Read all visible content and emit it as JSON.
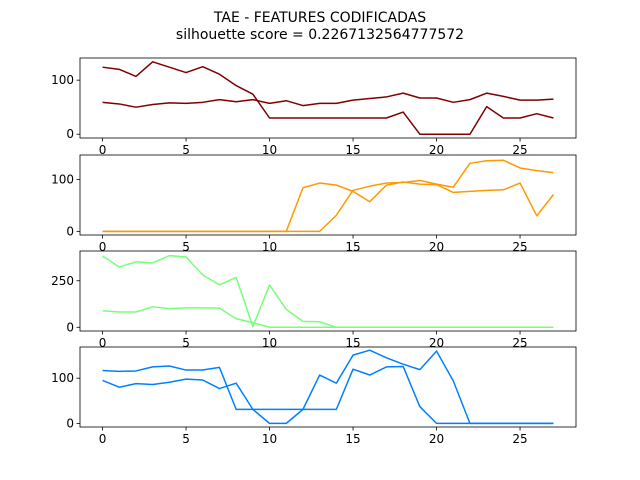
{
  "figure": {
    "title": "TAE - FEATURES CODIFICADAS",
    "subtitle": "silhouette score = 0.2267132564777572"
  },
  "chart_data": [
    {
      "type": "line",
      "xlim": [
        -1.35,
        28.35
      ],
      "ylim": [
        -7,
        141
      ],
      "xticks": [
        0,
        5,
        10,
        15,
        20,
        25
      ],
      "yticks": [
        0,
        100
      ],
      "grid": false,
      "series": [
        {
          "color": "#800000",
          "x": [
            0,
            1,
            2,
            3,
            4,
            5,
            6,
            7,
            8,
            9,
            10,
            11,
            12,
            13,
            14,
            15,
            16,
            17,
            18,
            19,
            20,
            21,
            22,
            23,
            24,
            25,
            26,
            27
          ],
          "values": [
            124,
            120,
            107,
            134,
            124,
            114,
            125,
            111,
            90,
            74,
            30,
            30,
            30,
            30,
            30,
            30,
            30,
            30,
            41,
            0,
            0,
            0,
            0,
            51,
            30,
            30,
            38,
            30
          ]
        },
        {
          "color": "#800000",
          "x": [
            0,
            1,
            2,
            3,
            4,
            5,
            6,
            7,
            8,
            9,
            10,
            11,
            12,
            13,
            14,
            15,
            16,
            17,
            18,
            19,
            20,
            21,
            22,
            23,
            24,
            25,
            26,
            27
          ],
          "values": [
            59,
            56,
            50,
            55,
            58,
            57,
            59,
            64,
            60,
            64,
            57,
            62,
            53,
            57,
            57,
            63,
            66,
            69,
            76,
            67,
            67,
            59,
            64,
            76,
            70,
            63,
            63,
            65
          ]
        }
      ]
    },
    {
      "type": "line",
      "xlim": [
        -1.35,
        28.35
      ],
      "ylim": [
        -7,
        147
      ],
      "xticks": [
        0,
        5,
        10,
        15,
        20,
        25
      ],
      "yticks": [
        0,
        100
      ],
      "grid": false,
      "series": [
        {
          "color": "#ff9900",
          "x": [
            0,
            1,
            2,
            3,
            4,
            5,
            6,
            7,
            8,
            9,
            10,
            11,
            12,
            13,
            14,
            15,
            16,
            17,
            18,
            19,
            20,
            21,
            22,
            23,
            24,
            25,
            26,
            27
          ],
          "values": [
            0,
            0,
            0,
            0,
            0,
            0,
            0,
            0,
            0,
            0,
            0,
            0,
            84,
            93,
            89,
            77,
            57,
            89,
            95,
            91,
            90,
            75,
            77,
            79,
            80,
            93,
            30,
            71
          ]
        },
        {
          "color": "#ff9900",
          "x": [
            0,
            1,
            2,
            3,
            4,
            5,
            6,
            7,
            8,
            9,
            10,
            11,
            12,
            13,
            14,
            15,
            16,
            17,
            18,
            19,
            20,
            21,
            22,
            23,
            24,
            25,
            26,
            27
          ],
          "values": [
            0,
            0,
            0,
            0,
            0,
            0,
            0,
            0,
            0,
            0,
            0,
            0,
            0,
            0,
            31,
            79,
            87,
            93,
            94,
            98,
            91,
            85,
            131,
            136,
            137,
            122,
            117,
            113
          ]
        }
      ]
    },
    {
      "type": "line",
      "xlim": [
        -1.35,
        28.35
      ],
      "ylim": [
        -20,
        410
      ],
      "xticks": [
        0,
        5,
        10,
        15,
        20,
        25
      ],
      "yticks": [
        0,
        250
      ],
      "grid": false,
      "series": [
        {
          "color": "#77ff77",
          "x": [
            0,
            1,
            2,
            3,
            4,
            5,
            6,
            7,
            8,
            9,
            10,
            11,
            12,
            13,
            14,
            15,
            16,
            17,
            18,
            19,
            20,
            21,
            22,
            23,
            24,
            25,
            26,
            27
          ],
          "values": [
            383,
            324,
            352,
            346,
            385,
            378,
            281,
            228,
            268,
            4,
            227,
            96,
            32,
            30,
            0,
            0,
            0,
            0,
            0,
            0,
            0,
            0,
            0,
            0,
            0,
            0,
            0,
            0
          ]
        },
        {
          "color": "#77ff77",
          "x": [
            0,
            1,
            2,
            3,
            4,
            5,
            6,
            7,
            8,
            9,
            10,
            11,
            12,
            13,
            14,
            15,
            16,
            17,
            18,
            19,
            20,
            21,
            22,
            23,
            24,
            25,
            26,
            27
          ],
          "values": [
            89,
            82,
            82,
            110,
            100,
            104,
            104,
            103,
            46,
            25,
            0,
            0,
            0,
            0,
            0,
            0,
            0,
            0,
            0,
            0,
            0,
            0,
            0,
            0,
            0,
            0,
            0,
            0
          ]
        }
      ]
    },
    {
      "type": "line",
      "xlim": [
        -1.35,
        28.35
      ],
      "ylim": [
        -8,
        169
      ],
      "xticks": [
        0,
        5,
        10,
        15,
        20,
        25
      ],
      "yticks": [
        0,
        100
      ],
      "grid": false,
      "series": [
        {
          "color": "#0080ff",
          "x": [
            0,
            1,
            2,
            3,
            4,
            5,
            6,
            7,
            8,
            9,
            10,
            11,
            12,
            13,
            14,
            15,
            16,
            17,
            18,
            19,
            20,
            21,
            22,
            23,
            24,
            25,
            26,
            27
          ],
          "values": [
            95,
            80,
            88,
            86,
            91,
            98,
            96,
            77,
            89,
            31,
            0,
            0,
            31,
            107,
            89,
            151,
            162,
            145,
            131,
            119,
            160,
            94,
            0,
            0,
            0,
            0,
            0,
            0
          ]
        },
        {
          "color": "#0080ff",
          "x": [
            0,
            1,
            2,
            3,
            4,
            5,
            6,
            7,
            8,
            9,
            10,
            11,
            12,
            13,
            14,
            15,
            16,
            17,
            18,
            19,
            20,
            21,
            22,
            23,
            24,
            25,
            26,
            27
          ],
          "values": [
            117,
            115,
            116,
            125,
            127,
            118,
            118,
            124,
            31,
            31,
            31,
            31,
            31,
            31,
            31,
            120,
            107,
            125,
            126,
            37,
            0,
            0,
            0,
            0,
            0,
            0,
            0,
            0
          ]
        }
      ]
    }
  ]
}
